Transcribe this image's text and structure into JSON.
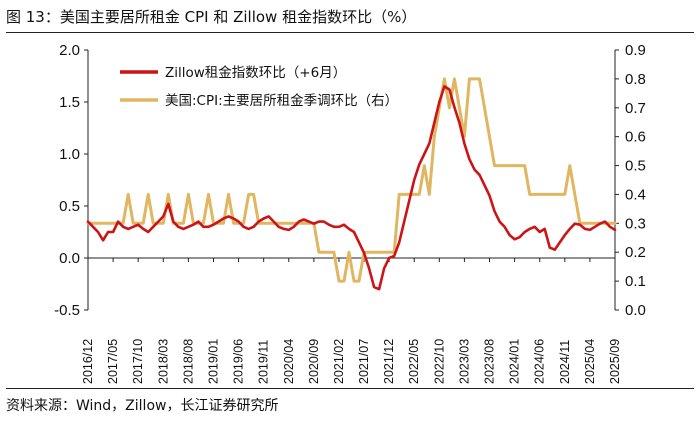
{
  "header": {
    "title": "图 13：美国主要居所租金 CPI 和 Zillow 租金指数环比（%）"
  },
  "footer": {
    "source": "资料来源：Wind，Zillow，长江证券研究所"
  },
  "chart_data": {
    "type": "line",
    "title": "图 13：美国主要居所租金 CPI 和 Zillow 租金指数环比（%）",
    "x_tick_labels": [
      "2016/12",
      "2017/05",
      "2017/10",
      "2018/03",
      "2018/08",
      "2019/01",
      "2019/06",
      "2019/11",
      "2020/04",
      "2020/09",
      "2021/02",
      "2021/07",
      "2021/12",
      "2022/05",
      "2022/10",
      "2023/03",
      "2023/08",
      "2024/01",
      "2024/06",
      "2024/11",
      "2025/04",
      "2025/09"
    ],
    "x_start": "2016/12",
    "x_end": "2025/09",
    "n_months": 106,
    "left_axis": {
      "ylim": [
        -0.5,
        2.0
      ],
      "ticks": [
        "-0.5",
        "0.0",
        "0.5",
        "1.0",
        "1.5",
        "2.0"
      ]
    },
    "right_axis": {
      "ylim": [
        0.0,
        0.9
      ],
      "ticks": [
        "0.0",
        "0.1",
        "0.2",
        "0.3",
        "0.4",
        "0.5",
        "0.6",
        "0.7",
        "0.8",
        "0.9"
      ]
    },
    "legend_position": "top-left",
    "series": [
      {
        "name": "Zillow租金指数环比（+6月）",
        "axis": "left",
        "color": "#cc1417",
        "values": [
          0.35,
          0.3,
          0.25,
          0.17,
          0.25,
          0.25,
          0.35,
          0.3,
          0.28,
          0.3,
          0.32,
          0.28,
          0.25,
          0.3,
          0.35,
          0.4,
          0.52,
          0.35,
          0.3,
          0.28,
          0.3,
          0.32,
          0.35,
          0.3,
          0.3,
          0.32,
          0.35,
          0.38,
          0.4,
          0.38,
          0.35,
          0.3,
          0.28,
          0.3,
          0.35,
          0.38,
          0.4,
          0.35,
          0.3,
          0.28,
          0.27,
          0.3,
          0.35,
          0.37,
          0.35,
          0.33,
          0.35,
          0.35,
          0.32,
          0.3,
          0.3,
          0.32,
          0.28,
          0.25,
          0.15,
          0.05,
          -0.1,
          -0.28,
          -0.3,
          -0.1,
          0.0,
          0.02,
          0.15,
          0.35,
          0.55,
          0.75,
          0.9,
          1.0,
          1.1,
          1.3,
          1.5,
          1.65,
          1.62,
          1.45,
          1.3,
          1.1,
          0.95,
          0.85,
          0.8,
          0.7,
          0.6,
          0.45,
          0.35,
          0.3,
          0.22,
          0.18,
          0.2,
          0.25,
          0.28,
          0.3,
          0.25,
          0.28,
          0.1,
          0.08,
          0.15,
          0.22,
          0.28,
          0.33,
          0.32,
          0.28,
          0.27,
          0.3,
          0.33,
          0.35,
          0.3,
          0.27
        ]
      },
      {
        "name": "美国:CPI:主要居所租金季调环比（右）",
        "axis": "right",
        "color": "#e0b660",
        "values": [
          0.3,
          0.3,
          0.3,
          0.3,
          0.3,
          0.3,
          0.3,
          0.3,
          0.4,
          0.3,
          0.3,
          0.3,
          0.4,
          0.3,
          0.3,
          0.3,
          0.4,
          0.3,
          0.3,
          0.3,
          0.4,
          0.3,
          0.3,
          0.3,
          0.4,
          0.3,
          0.3,
          0.3,
          0.4,
          0.3,
          0.3,
          0.3,
          0.4,
          0.4,
          0.3,
          0.3,
          0.3,
          0.3,
          0.3,
          0.3,
          0.3,
          0.3,
          0.3,
          0.3,
          0.3,
          0.3,
          0.2,
          0.2,
          0.2,
          0.2,
          0.1,
          0.1,
          0.2,
          0.1,
          0.1,
          0.2,
          0.2,
          0.2,
          0.2,
          0.2,
          0.2,
          0.2,
          0.4,
          0.4,
          0.4,
          0.4,
          0.4,
          0.5,
          0.4,
          0.6,
          0.7,
          0.8,
          0.7,
          0.8,
          0.7,
          0.6,
          0.8,
          0.8,
          0.8,
          0.7,
          0.6,
          0.5,
          0.5,
          0.5,
          0.5,
          0.5,
          0.5,
          0.5,
          0.4,
          0.4,
          0.4,
          0.4,
          0.4,
          0.4,
          0.4,
          0.4,
          0.5,
          0.4,
          0.3,
          0.3,
          0.3,
          0.3,
          0.3,
          0.3,
          0.3,
          0.3
        ]
      }
    ]
  }
}
